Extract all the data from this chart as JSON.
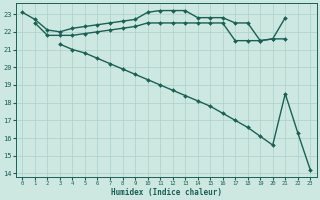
{
  "xlabel": "Humidex (Indice chaleur)",
  "bg_color": "#cce8e0",
  "grid_color": "#aad0c8",
  "line_color": "#1a6055",
  "xlim": [
    -0.5,
    23.5
  ],
  "ylim": [
    13.8,
    23.6
  ],
  "yticks": [
    14,
    15,
    16,
    17,
    18,
    19,
    20,
    21,
    22,
    23
  ],
  "xticks": [
    0,
    1,
    2,
    3,
    4,
    5,
    6,
    7,
    8,
    9,
    10,
    11,
    12,
    13,
    14,
    15,
    16,
    17,
    18,
    19,
    20,
    21,
    22,
    23
  ],
  "series": [
    {
      "x": [
        0,
        1,
        2,
        3,
        4,
        5,
        6,
        7,
        8,
        9,
        10,
        11,
        12,
        13,
        14,
        15,
        16,
        17,
        18,
        19,
        20,
        21
      ],
      "y": [
        23.1,
        22.7,
        22.1,
        22.0,
        22.2,
        22.3,
        22.4,
        22.5,
        22.6,
        22.7,
        23.1,
        23.2,
        23.2,
        23.2,
        22.8,
        22.8,
        22.8,
        22.5,
        22.5,
        21.5,
        21.6,
        22.8
      ],
      "marker": "D",
      "markersize": 2.0,
      "linewidth": 1.0
    },
    {
      "x": [
        1,
        2,
        3,
        4,
        5,
        6,
        7,
        8,
        9,
        10,
        11,
        12,
        13,
        14,
        15,
        16,
        17,
        18,
        19,
        20,
        21
      ],
      "y": [
        22.5,
        21.8,
        21.8,
        21.8,
        21.9,
        22.0,
        22.1,
        22.2,
        22.3,
        22.5,
        22.5,
        22.5,
        22.5,
        22.5,
        22.5,
        22.5,
        21.5,
        21.5,
        21.5,
        21.6,
        21.6
      ],
      "marker": "D",
      "markersize": 2.0,
      "linewidth": 1.0
    },
    {
      "x": [
        3,
        4,
        5,
        6,
        7,
        8,
        9,
        10,
        11,
        12,
        13,
        14,
        15,
        16,
        17,
        18,
        19,
        20,
        21,
        22,
        23
      ],
      "y": [
        21.3,
        21.0,
        20.8,
        20.5,
        20.2,
        19.9,
        19.6,
        19.3,
        19.0,
        18.7,
        18.4,
        18.1,
        17.8,
        17.4,
        17.0,
        16.6,
        16.1,
        15.6,
        18.5,
        16.3,
        14.2
      ],
      "marker": "D",
      "markersize": 2.0,
      "linewidth": 1.0
    }
  ]
}
